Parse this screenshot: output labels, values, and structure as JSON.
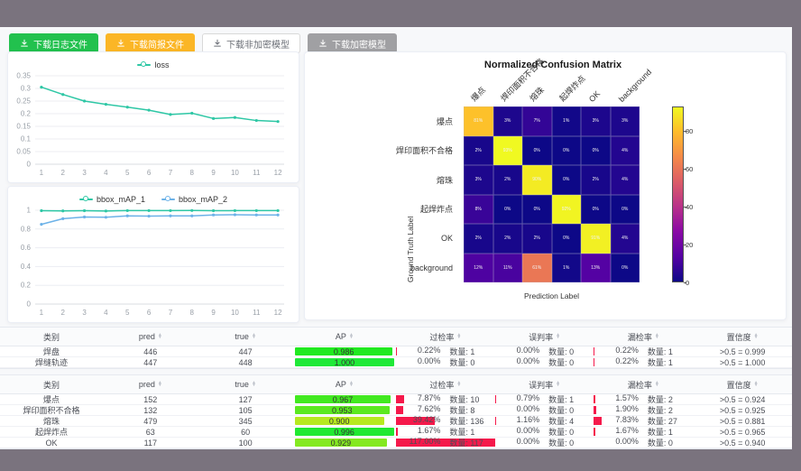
{
  "colors": {
    "outer_bg": "#7a737e",
    "page_bg": "#f7f8fa",
    "teal": "#2ec7a5",
    "blue": "#6cb2e8",
    "rate_bar_red": "#f5194b",
    "btn_green": "#22c14e",
    "btn_orange": "#fbb626",
    "btn_gray": "#a0a0a3"
  },
  "icons": {
    "sort_up": "▲",
    "sort_down": "▼"
  },
  "toolbar": {
    "buttons": [
      {
        "label": "下载日志文件",
        "style": "green",
        "icon": "download-icon"
      },
      {
        "label": "下载简报文件",
        "style": "orange",
        "icon": "download-icon"
      },
      {
        "label": "下载非加密模型",
        "style": "plain",
        "icon": "download-icon"
      },
      {
        "label": "下载加密模型",
        "style": "gray",
        "icon": "download-icon"
      }
    ]
  },
  "chart_data": [
    {
      "type": "line",
      "title": "",
      "x": [
        1,
        2,
        3,
        4,
        5,
        6,
        7,
        8,
        9,
        10,
        11,
        12
      ],
      "ylim": [
        0,
        0.35
      ],
      "yticks": [
        0,
        0.05,
        0.1,
        0.15,
        0.2,
        0.25,
        0.3,
        0.35
      ],
      "grid": true,
      "legend_position": "top",
      "series": [
        {
          "name": "loss",
          "color": "#2ec7a5",
          "values": [
            0.305,
            0.276,
            0.25,
            0.237,
            0.226,
            0.214,
            0.197,
            0.202,
            0.181,
            0.185,
            0.173,
            0.169
          ]
        }
      ]
    },
    {
      "type": "line",
      "title": "",
      "x": [
        1,
        2,
        3,
        4,
        5,
        6,
        7,
        8,
        9,
        10,
        11,
        12
      ],
      "ylim": [
        0,
        1
      ],
      "yticks": [
        0,
        0.2,
        0.4,
        0.6,
        0.8,
        1
      ],
      "grid": true,
      "legend_position": "top",
      "series": [
        {
          "name": "bbox_mAP_1",
          "color": "#2ec7a5",
          "values": [
            0.995,
            0.993,
            0.995,
            0.992,
            0.996,
            0.996,
            0.996,
            0.997,
            0.995,
            0.996,
            0.996,
            0.996
          ]
        },
        {
          "name": "bbox_mAP_2",
          "color": "#6cb2e8",
          "values": [
            0.85,
            0.91,
            0.928,
            0.925,
            0.94,
            0.937,
            0.94,
            0.94,
            0.95,
            0.952,
            0.95,
            0.95
          ]
        }
      ]
    },
    {
      "type": "heatmap",
      "title": "Normalized Confusion Matrix",
      "xlabel": "Prediction Label",
      "ylabel": "Ground Truth Label",
      "labels": [
        "爆点",
        "焊印面积不合格",
        "熔珠",
        "起焊炸点",
        "OK",
        "background"
      ],
      "matrix": [
        [
          81,
          3,
          7,
          1,
          3,
          3
        ],
        [
          2,
          93,
          0,
          0,
          0,
          4
        ],
        [
          3,
          2,
          90,
          0,
          2,
          4
        ],
        [
          8,
          0,
          0,
          92,
          0,
          0
        ],
        [
          2,
          2,
          2,
          0,
          91,
          4
        ],
        [
          12,
          11,
          61,
          1,
          13,
          0
        ]
      ],
      "vmax": 93,
      "colorbar_ticks": [
        0,
        20,
        40,
        60,
        80
      ],
      "unit": "%"
    }
  ],
  "tables": {
    "headers": [
      "类别",
      "pred",
      "true",
      "AP",
      "过检率",
      "误判率",
      "漏检率",
      "置信度"
    ],
    "count_label": "数量:",
    "table1_rows": [
      {
        "name": "焊盘",
        "pred": "446",
        "true": "447",
        "ap": "0.986",
        "rates": [
          [
            "0.22%",
            "1",
            0.22
          ],
          [
            "0.00%",
            "0",
            0
          ],
          [
            "0.22%",
            "1",
            0.22
          ]
        ],
        "conf": ">0.5 = 0.999"
      },
      {
        "name": "焊缝轨迹",
        "pred": "447",
        "true": "448",
        "ap": "1.000",
        "rates": [
          [
            "0.00%",
            "0",
            0
          ],
          [
            "0.00%",
            "0",
            0
          ],
          [
            "0.22%",
            "1",
            0.22
          ]
        ],
        "conf": ">0.5 = 1.000"
      }
    ],
    "table2_rows": [
      {
        "name": "爆点",
        "pred": "152",
        "true": "127",
        "ap": "0.967",
        "rates": [
          [
            "7.87%",
            "10",
            7.87
          ],
          [
            "0.79%",
            "1",
            0.79
          ],
          [
            "1.57%",
            "2",
            1.57
          ]
        ],
        "conf": ">0.5 = 0.924"
      },
      {
        "name": "焊印面积不合格",
        "pred": "132",
        "true": "105",
        "ap": "0.953",
        "rates": [
          [
            "7.62%",
            "8",
            7.62
          ],
          [
            "0.00%",
            "0",
            0
          ],
          [
            "1.90%",
            "2",
            1.9
          ]
        ],
        "conf": ">0.5 = 0.925"
      },
      {
        "name": "熔珠",
        "pred": "479",
        "true": "345",
        "ap": "0.900",
        "rates": [
          [
            "39.42%",
            "136",
            39.42
          ],
          [
            "1.16%",
            "4",
            1.16
          ],
          [
            "7.83%",
            "27",
            7.83
          ]
        ],
        "conf": ">0.5 = 0.881"
      },
      {
        "name": "起焊炸点",
        "pred": "63",
        "true": "60",
        "ap": "0.996",
        "rates": [
          [
            "1.67%",
            "1",
            1.67
          ],
          [
            "0.00%",
            "0",
            0
          ],
          [
            "1.67%",
            "1",
            1.67
          ]
        ],
        "conf": ">0.5 = 0.965"
      },
      {
        "name": "OK",
        "pred": "117",
        "true": "100",
        "ap": "0.929",
        "rates": [
          [
            "117.00%",
            "117",
            117
          ],
          [
            "0.00%",
            "0",
            0
          ],
          [
            "0.00%",
            "0",
            0
          ]
        ],
        "conf": ">0.5 = 0.940"
      }
    ]
  }
}
